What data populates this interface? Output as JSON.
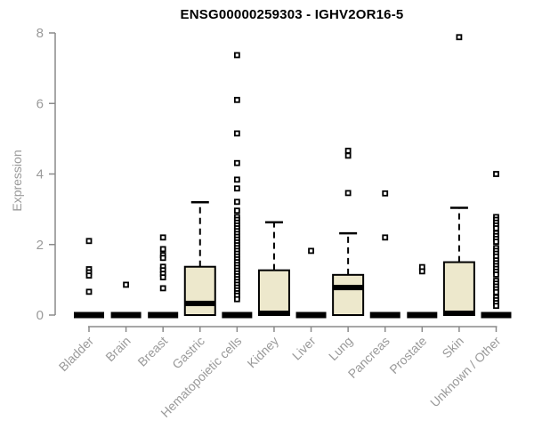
{
  "chart_data": {
    "type": "boxplot",
    "title": "ENSG00000259303 - IGHV2OR16-5",
    "xlabel": "",
    "ylabel": "Expression",
    "ylim": [
      0,
      8
    ],
    "yticks": [
      0,
      2,
      4,
      6,
      8
    ],
    "grid": false,
    "legend": "none",
    "colors": {
      "box_fill": "#EDE8CC",
      "box_stroke": "#000000",
      "median": "#000000",
      "outlier_stroke": "#000000",
      "axis_line": "#8a8a8a",
      "tick_label": "#9a9a9a",
      "title": "#000000"
    },
    "categories": [
      "Bladder",
      "Brain",
      "Breast",
      "Gastric",
      "Hematopoietic cells",
      "Kidney",
      "Liver",
      "Lung",
      "Pancreas",
      "Prostate",
      "Skin",
      "Unknown / Other"
    ],
    "series": [
      {
        "name": "Bladder",
        "q1": 0,
        "median": 0,
        "q3": 0,
        "whisker_low": 0,
        "whisker_high": 0,
        "outliers": [
          2.1,
          1.3,
          1.21,
          1.12,
          0.66
        ]
      },
      {
        "name": "Brain",
        "q1": 0,
        "median": 0,
        "q3": 0,
        "whisker_low": 0,
        "whisker_high": 0,
        "outliers": [
          0.86
        ]
      },
      {
        "name": "Breast",
        "q1": 0,
        "median": 0,
        "q3": 0,
        "whisker_low": 0,
        "whisker_high": 0,
        "outliers": [
          2.2,
          1.87,
          1.7,
          1.62,
          1.37,
          1.27,
          1.17,
          1.07,
          0.76
        ]
      },
      {
        "name": "Gastric",
        "q1": 0,
        "median": 0.33,
        "q3": 1.37,
        "whisker_low": 0,
        "whisker_high": 3.2,
        "outliers": []
      },
      {
        "name": "Hematopoietic cells",
        "q1": 0,
        "median": 0,
        "q3": 0,
        "whisker_low": 0,
        "whisker_high": 0,
        "outliers": [
          7.37,
          6.1,
          5.15,
          4.31,
          3.84,
          3.59,
          3.21,
          2.96,
          2.78,
          2.7,
          2.62,
          2.54,
          2.46,
          2.38,
          2.3,
          2.22,
          2.14,
          2.06,
          1.98,
          1.9,
          1.82,
          1.74,
          1.66,
          1.58,
          1.5,
          1.42,
          1.34,
          1.26,
          1.18,
          1.1,
          1.02,
          0.94,
          0.86,
          0.78,
          0.7,
          0.62,
          0.55,
          0.45
        ]
      },
      {
        "name": "Kidney",
        "q1": 0,
        "median": 0.05,
        "q3": 1.27,
        "whisker_low": 0,
        "whisker_high": 2.63,
        "outliers": []
      },
      {
        "name": "Liver",
        "q1": 0,
        "median": 0,
        "q3": 0,
        "whisker_low": 0,
        "whisker_high": 0,
        "outliers": [
          1.82
        ]
      },
      {
        "name": "Lung",
        "q1": 0,
        "median": 0.78,
        "q3": 1.14,
        "whisker_low": 0,
        "whisker_high": 2.32,
        "outliers": [
          4.66,
          4.52,
          3.46
        ]
      },
      {
        "name": "Pancreas",
        "q1": 0,
        "median": 0,
        "q3": 0,
        "whisker_low": 0,
        "whisker_high": 0,
        "outliers": [
          3.45,
          2.2
        ]
      },
      {
        "name": "Prostate",
        "q1": 0,
        "median": 0,
        "q3": 0,
        "whisker_low": 0,
        "whisker_high": 0,
        "outliers": [
          1.36,
          1.24
        ]
      },
      {
        "name": "Skin",
        "q1": 0,
        "median": 0.05,
        "q3": 1.5,
        "whisker_low": 0,
        "whisker_high": 3.04,
        "outliers": [
          7.88
        ]
      },
      {
        "name": "Unknown / Other",
        "q1": 0,
        "median": 0,
        "q3": 0,
        "whisker_low": 0,
        "whisker_high": 0,
        "outliers": [
          4.0,
          2.78,
          2.7,
          2.62,
          2.54,
          2.46,
          2.32,
          2.24,
          2.16,
          2.08,
          1.9,
          1.82,
          1.74,
          1.66,
          1.55,
          1.47,
          1.39,
          1.31,
          1.23,
          1.15,
          0.97,
          0.89,
          0.81,
          0.73,
          0.65,
          0.5,
          0.42,
          0.34,
          0.26
        ]
      }
    ]
  }
}
